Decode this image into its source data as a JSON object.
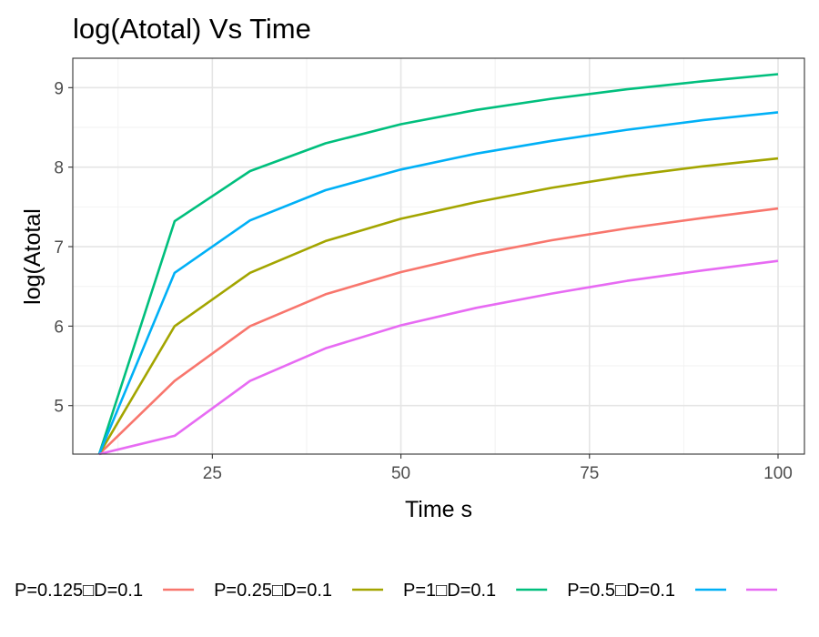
{
  "chart_data": {
    "type": "line",
    "title": "log(Atotal) Vs Time",
    "xlabel": "Time s",
    "ylabel": "log(Atotal",
    "xlim": [
      6.5,
      103.5
    ],
    "ylim": [
      4.39,
      9.37
    ],
    "xticks": [
      25,
      50,
      75,
      100
    ],
    "yticks": [
      5,
      6,
      7,
      8,
      9
    ],
    "grid": true,
    "legend_position": "bottom",
    "x": [
      10,
      20,
      30,
      40,
      50,
      60,
      70,
      80,
      90,
      100
    ],
    "series": [
      {
        "name": "P=0.125□D=0.1",
        "color": "#F8766D",
        "values": [
          4.39,
          5.31,
          6.0,
          6.4,
          6.68,
          6.9,
          7.08,
          7.23,
          7.36,
          7.48
        ]
      },
      {
        "name": "P=0.25□D=0.1",
        "color": "#A3A500",
        "values": [
          4.39,
          6.0,
          6.67,
          7.07,
          7.35,
          7.56,
          7.74,
          7.89,
          8.01,
          8.11
        ]
      },
      {
        "name": "P=1□D=0.1",
        "color": "#00BF7D",
        "values": [
          4.39,
          7.32,
          7.95,
          8.3,
          8.54,
          8.72,
          8.86,
          8.98,
          9.08,
          9.17
        ]
      },
      {
        "name": "P=0.5□D=0.1",
        "color": "#00B0F6",
        "values": [
          4.39,
          6.67,
          7.33,
          7.71,
          7.97,
          8.17,
          8.33,
          8.47,
          8.59,
          8.69
        ]
      },
      {
        "name": "",
        "color": "#E76BF3",
        "values": [
          4.39,
          4.62,
          5.31,
          5.72,
          6.01,
          6.23,
          6.41,
          6.57,
          6.7,
          6.82
        ]
      }
    ]
  }
}
